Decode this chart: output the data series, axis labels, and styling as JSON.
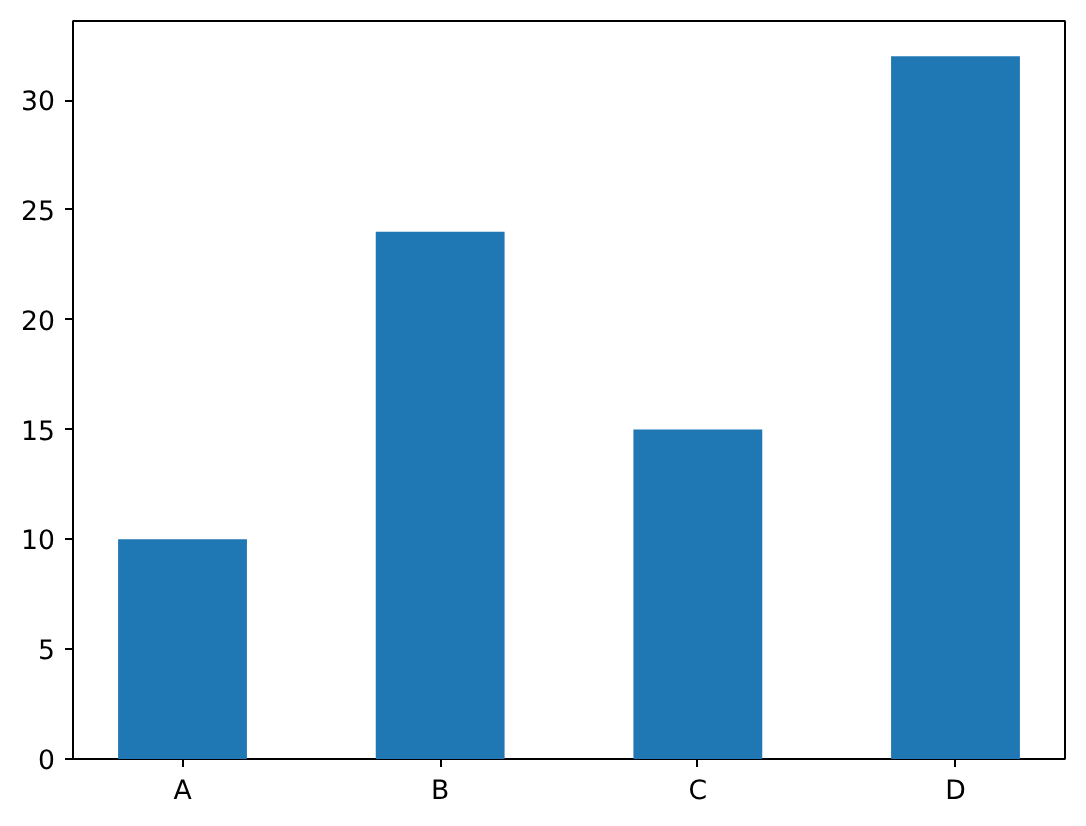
{
  "chart_data": {
    "type": "bar",
    "categories": [
      "A",
      "B",
      "C",
      "D"
    ],
    "values": [
      10,
      24,
      15,
      32
    ],
    "color": "#1f77b4",
    "ylim": [
      0,
      33.6
    ],
    "yticks": [
      0,
      5,
      10,
      15,
      20,
      25,
      30
    ],
    "grid": false
  }
}
